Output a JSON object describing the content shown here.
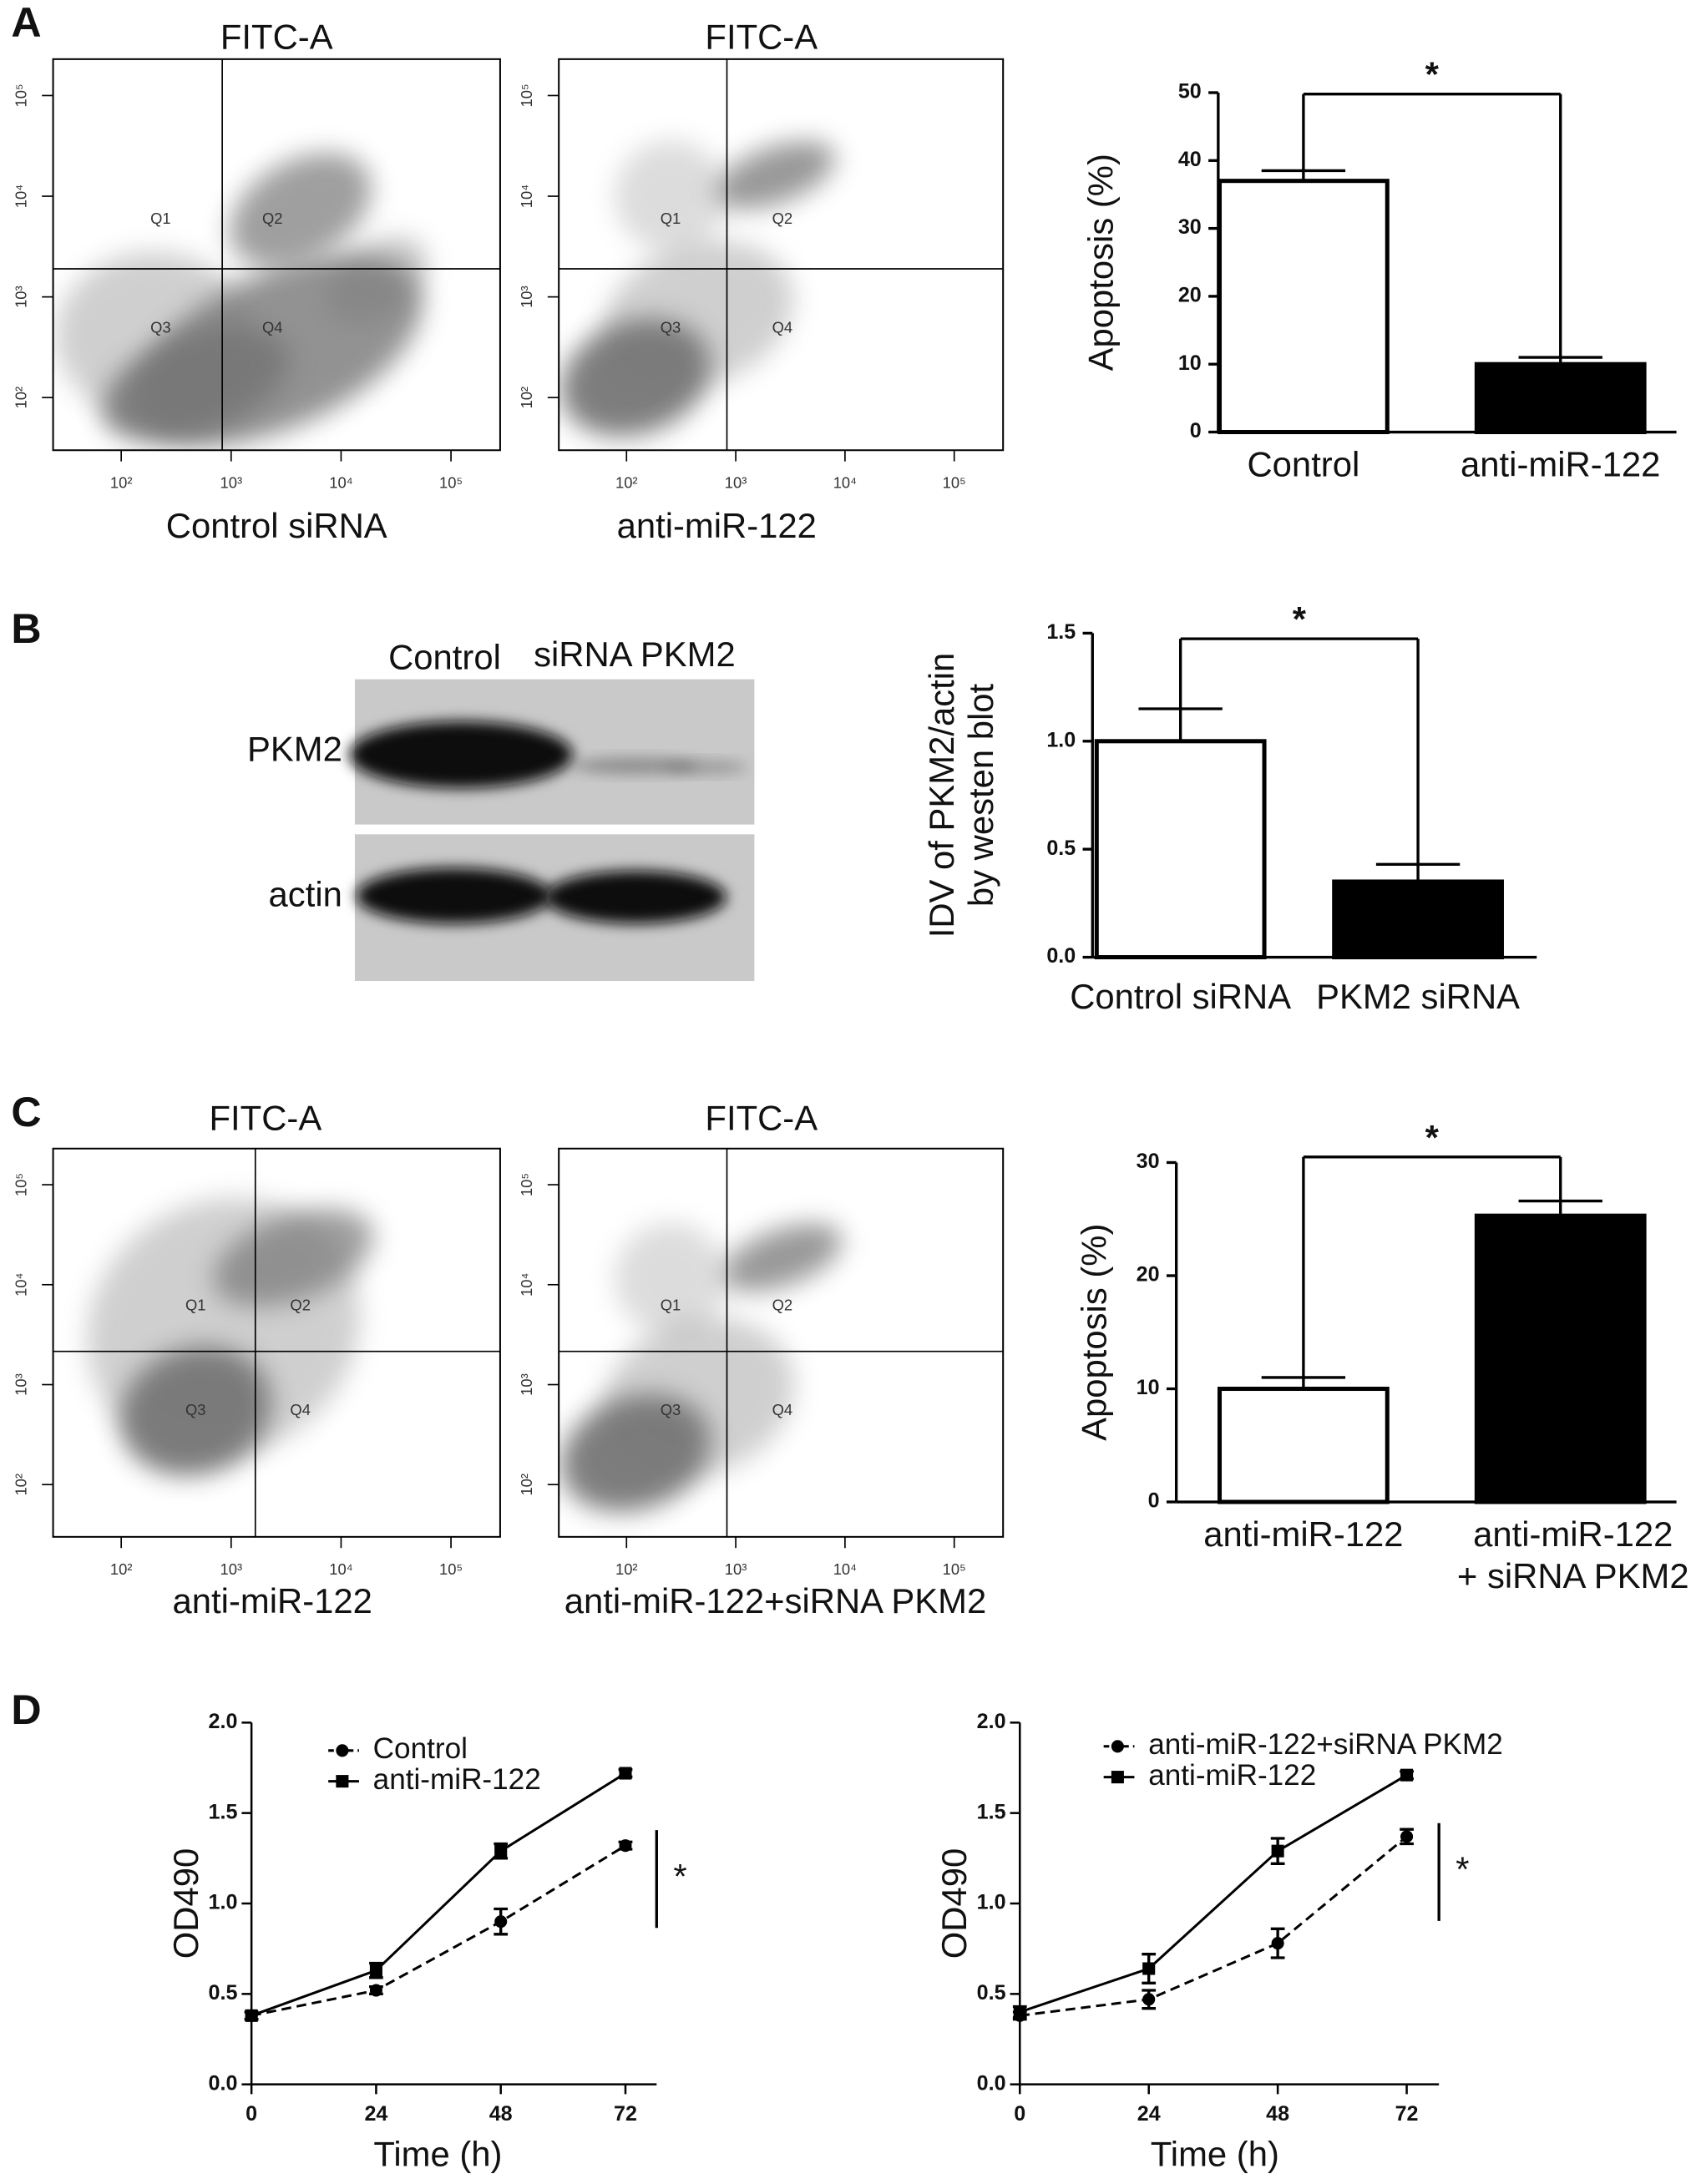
{
  "panels": [
    "A",
    "B",
    "C",
    "D"
  ],
  "blot": {
    "lanes": [
      "Control",
      "siRNA PKM2"
    ],
    "rows": [
      "PKM2",
      "actin"
    ]
  },
  "chart_data": [
    {
      "type": "flow",
      "title": "FITC-A",
      "xlabel": "Control siRNA",
      "xscale": "log",
      "yscale": "log",
      "xlim": [
        24,
        280000
      ],
      "ylim": [
        30,
        230000
      ],
      "xticks": [
        {
          "value": 100,
          "label": "10²"
        },
        {
          "value": 1000,
          "label": "10³"
        },
        {
          "value": 10000,
          "label": "10⁴"
        },
        {
          "value": 100000,
          "label": "10⁵"
        }
      ],
      "yticks": [
        {
          "value": 100,
          "label": "10²"
        },
        {
          "value": 1000,
          "label": "10³"
        },
        {
          "value": 10000,
          "label": "10⁴"
        },
        {
          "value": 100000,
          "label": "10⁵"
        }
      ],
      "gates": {
        "x": 830,
        "y": 1900
      },
      "quadrants": [
        "Q1",
        "Q2",
        "Q3",
        "Q4"
      ]
    },
    {
      "type": "flow",
      "title": "FITC-A",
      "xlabel": "anti-miR-122",
      "xscale": "log",
      "yscale": "log",
      "xlim": [
        24,
        280000
      ],
      "ylim": [
        30,
        230000
      ],
      "xticks": [
        {
          "value": 100,
          "label": "10²"
        },
        {
          "value": 1000,
          "label": "10³"
        },
        {
          "value": 10000,
          "label": "10⁴"
        },
        {
          "value": 100000,
          "label": "10⁵"
        }
      ],
      "yticks": [
        {
          "value": 100,
          "label": "10²"
        },
        {
          "value": 1000,
          "label": "10³"
        },
        {
          "value": 10000,
          "label": "10⁴"
        },
        {
          "value": 100000,
          "label": "10⁵"
        }
      ],
      "gates": {
        "x": 830,
        "y": 1900
      },
      "quadrants": [
        "Q1",
        "Q2",
        "Q3",
        "Q4"
      ]
    },
    {
      "type": "bar",
      "ylabel": [
        "Apoptosis (%)"
      ],
      "categories": [
        [
          "Control"
        ],
        [
          "anti-miR-122"
        ]
      ],
      "values": [
        37,
        10
      ],
      "errors": [
        1.5,
        1
      ],
      "colors": [
        "#ffffff",
        "#000000"
      ],
      "ylim": [
        0,
        50
      ],
      "yticks": [
        0,
        10,
        20,
        30,
        40,
        50
      ],
      "significance": "*"
    },
    {
      "type": "bar",
      "ylabel": [
        "IDV of PKM2/actin",
        "by westen blot"
      ],
      "categories": [
        [
          "Control siRNA"
        ],
        [
          "PKM2 siRNA"
        ]
      ],
      "values": [
        1.0,
        0.35
      ],
      "errors": [
        0.15,
        0.08
      ],
      "colors": [
        "#ffffff",
        "#000000"
      ],
      "ylim": [
        0,
        1.5
      ],
      "yticks": [
        {
          "value": 0,
          "label": "0.0"
        },
        {
          "value": 0.5,
          "label": "0.5"
        },
        {
          "value": 1,
          "label": "1.0"
        },
        {
          "value": 1.5,
          "label": "1.5"
        }
      ],
      "significance": "*"
    },
    {
      "type": "flow",
      "title": "FITC-A",
      "xlabel": "anti-miR-122",
      "xscale": "log",
      "yscale": "log",
      "xlim": [
        24,
        280000
      ],
      "ylim": [
        30,
        230000
      ],
      "xticks": [
        {
          "value": 100,
          "label": "10²"
        },
        {
          "value": 1000,
          "label": "10³"
        },
        {
          "value": 10000,
          "label": "10⁴"
        },
        {
          "value": 100000,
          "label": "10⁵"
        }
      ],
      "yticks": [
        {
          "value": 100,
          "label": "10²"
        },
        {
          "value": 1000,
          "label": "10³"
        },
        {
          "value": 10000,
          "label": "10⁴"
        },
        {
          "value": 100000,
          "label": "10⁵"
        }
      ],
      "gates": {
        "x": 1660,
        "y": 2150
      },
      "quadrants": [
        "Q1",
        "Q2",
        "Q3",
        "Q4"
      ]
    },
    {
      "type": "flow",
      "title": "FITC-A",
      "xlabel": "anti-miR-122+siRNA PKM2",
      "xscale": "log",
      "yscale": "log",
      "xlim": [
        24,
        280000
      ],
      "ylim": [
        30,
        230000
      ],
      "xticks": [
        {
          "value": 100,
          "label": "10²"
        },
        {
          "value": 1000,
          "label": "10³"
        },
        {
          "value": 10000,
          "label": "10⁴"
        },
        {
          "value": 100000,
          "label": "10⁵"
        }
      ],
      "yticks": [
        {
          "value": 100,
          "label": "10²"
        },
        {
          "value": 1000,
          "label": "10³"
        },
        {
          "value": 10000,
          "label": "10⁴"
        },
        {
          "value": 100000,
          "label": "10⁵"
        }
      ],
      "gates": {
        "x": 830,
        "y": 2150
      },
      "quadrants": [
        "Q1",
        "Q2",
        "Q3",
        "Q4"
      ]
    },
    {
      "type": "bar",
      "ylabel": [
        "Apoptosis (%)"
      ],
      "categories": [
        [
          "anti-miR-122"
        ],
        [
          "anti-miR-122",
          "+ siRNA PKM2"
        ]
      ],
      "values": [
        10,
        25.3
      ],
      "errors": [
        1,
        1.3
      ],
      "colors": [
        "#ffffff",
        "#000000"
      ],
      "ylim": [
        0,
        30
      ],
      "yticks": [
        0,
        10,
        20,
        30
      ],
      "significance": "*"
    },
    {
      "type": "line",
      "ylabel": "OD490",
      "xlabel": "Time (h)",
      "x": [
        0,
        24,
        48,
        72
      ],
      "xlim": [
        0,
        78
      ],
      "xticks": [
        0,
        24,
        48,
        72
      ],
      "ylim": [
        0,
        2
      ],
      "yticks": [
        {
          "value": 0,
          "label": "0.0"
        },
        {
          "value": 0.5,
          "label": "0.5"
        },
        {
          "value": 1,
          "label": "1.0"
        },
        {
          "value": 1.5,
          "label": "1.5"
        },
        {
          "value": 2,
          "label": "2.0"
        }
      ],
      "series": [
        {
          "name": "Control",
          "color": "#000000",
          "style": "dashed",
          "marker": "circle",
          "values": [
            0.38,
            0.52,
            0.9,
            1.32
          ],
          "errors": [
            0.02,
            0.02,
            0.07,
            0.02
          ]
        },
        {
          "name": "anti-miR-122",
          "color": "#000000",
          "style": "solid",
          "marker": "square",
          "values": [
            0.38,
            0.63,
            1.29,
            1.72
          ],
          "errors": [
            0.02,
            0.04,
            0.04,
            0.02
          ]
        }
      ],
      "significance": "*"
    },
    {
      "type": "line",
      "ylabel": "OD490",
      "xlabel": "Time (h)",
      "x": [
        0,
        24,
        48,
        72
      ],
      "xlim": [
        0,
        78
      ],
      "xticks": [
        0,
        24,
        48,
        72
      ],
      "ylim": [
        0,
        2
      ],
      "yticks": [
        {
          "value": 0,
          "label": "0.0"
        },
        {
          "value": 0.5,
          "label": "0.5"
        },
        {
          "value": 1,
          "label": "1.0"
        },
        {
          "value": 1.5,
          "label": "1.5"
        },
        {
          "value": 2,
          "label": "2.0"
        }
      ],
      "series": [
        {
          "name": "anti-miR-122+siRNA PKM2",
          "color": "#000000",
          "style": "dashed",
          "marker": "circle",
          "values": [
            0.38,
            0.47,
            0.78,
            1.37
          ],
          "errors": [
            0.02,
            0.05,
            0.08,
            0.04
          ]
        },
        {
          "name": "anti-miR-122",
          "color": "#000000",
          "style": "solid",
          "marker": "square",
          "values": [
            0.4,
            0.64,
            1.29,
            1.71
          ],
          "errors": [
            0.03,
            0.08,
            0.07,
            0.02
          ]
        }
      ],
      "significance": "*"
    }
  ]
}
